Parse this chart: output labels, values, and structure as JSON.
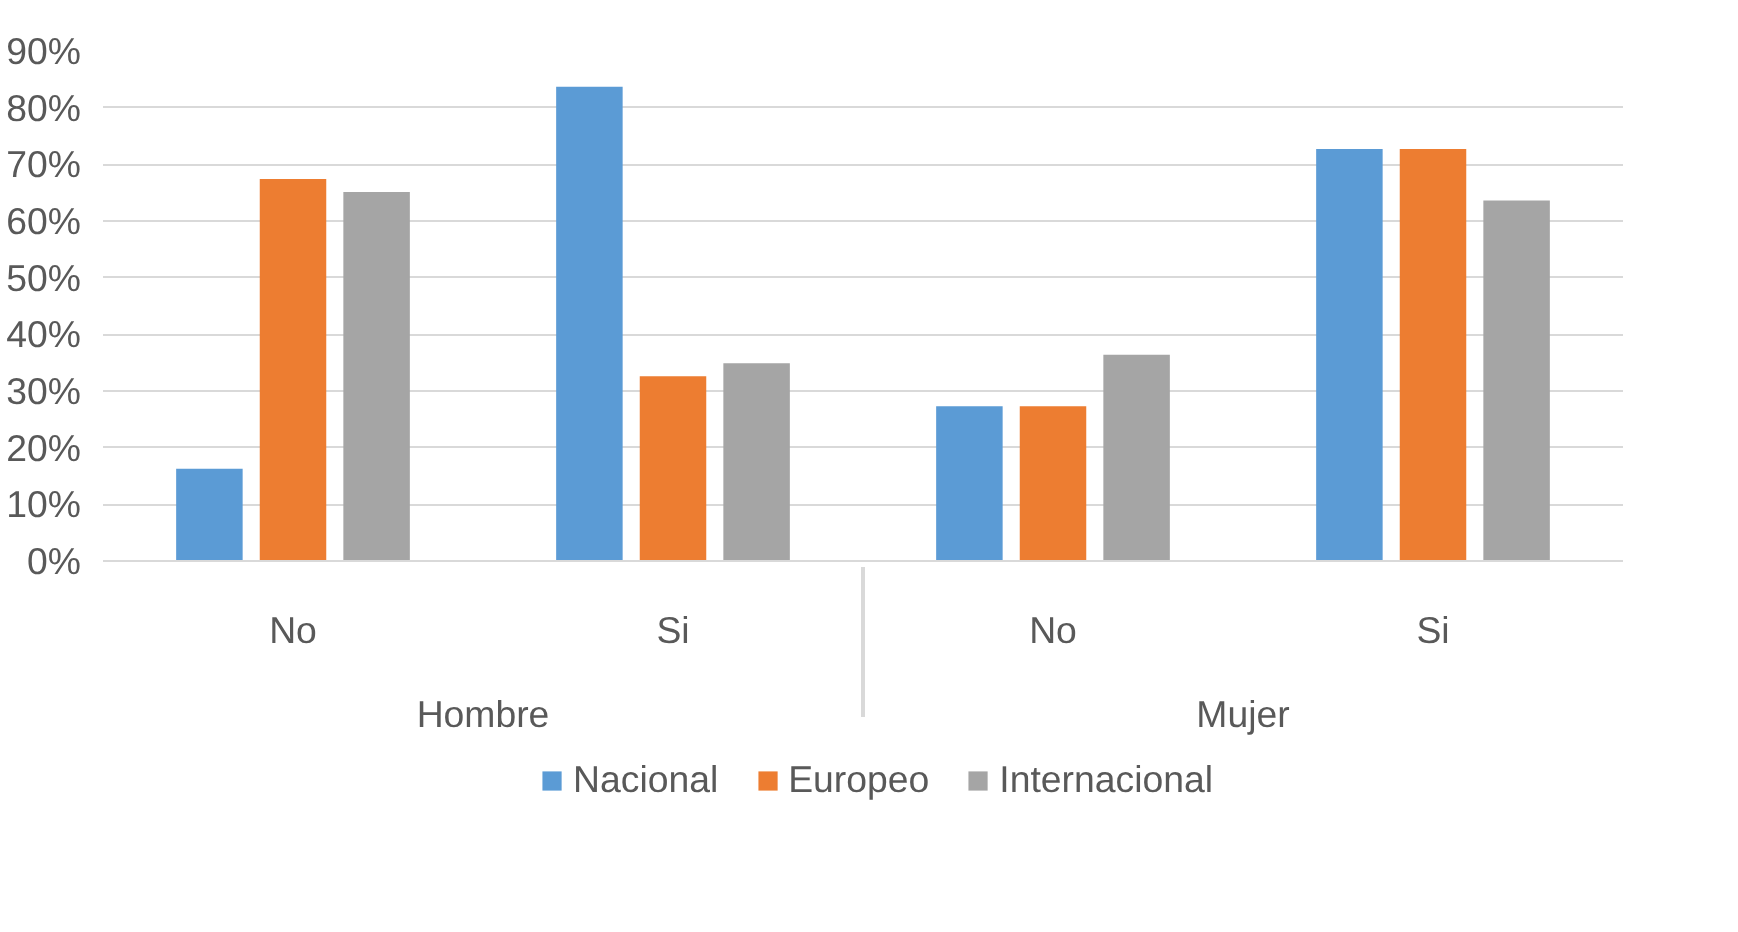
{
  "chart_data": {
    "type": "bar",
    "categories": [
      "No",
      "Si",
      "No",
      "Si"
    ],
    "annotations": [
      "Hombre",
      "Mujer"
    ],
    "series": [
      {
        "name": "Nacional",
        "color": "#5b9bd5",
        "values": [
          16.3,
          83.7,
          27.3,
          72.7
        ]
      },
      {
        "name": "Europeo",
        "color": "#ed7d31",
        "values": [
          67.4,
          32.6,
          27.3,
          72.7
        ]
      },
      {
        "name": "Internacional",
        "color": "#a5a5a5",
        "values": [
          65.1,
          34.9,
          36.4,
          63.6
        ]
      }
    ],
    "ylim": [
      0,
      90
    ],
    "yticks": [
      {
        "value": 0,
        "label": "0%"
      },
      {
        "value": 10,
        "label": "10%"
      },
      {
        "value": 20,
        "label": "20%"
      },
      {
        "value": 30,
        "label": "30%"
      },
      {
        "value": 40,
        "label": "40%"
      },
      {
        "value": 50,
        "label": "50%"
      },
      {
        "value": 60,
        "label": "60%"
      },
      {
        "value": 70,
        "label": "70%"
      },
      {
        "value": 80,
        "label": "80%"
      },
      {
        "value": 90,
        "label": "90%"
      }
    ],
    "grid": "y",
    "legend": "bottom"
  }
}
